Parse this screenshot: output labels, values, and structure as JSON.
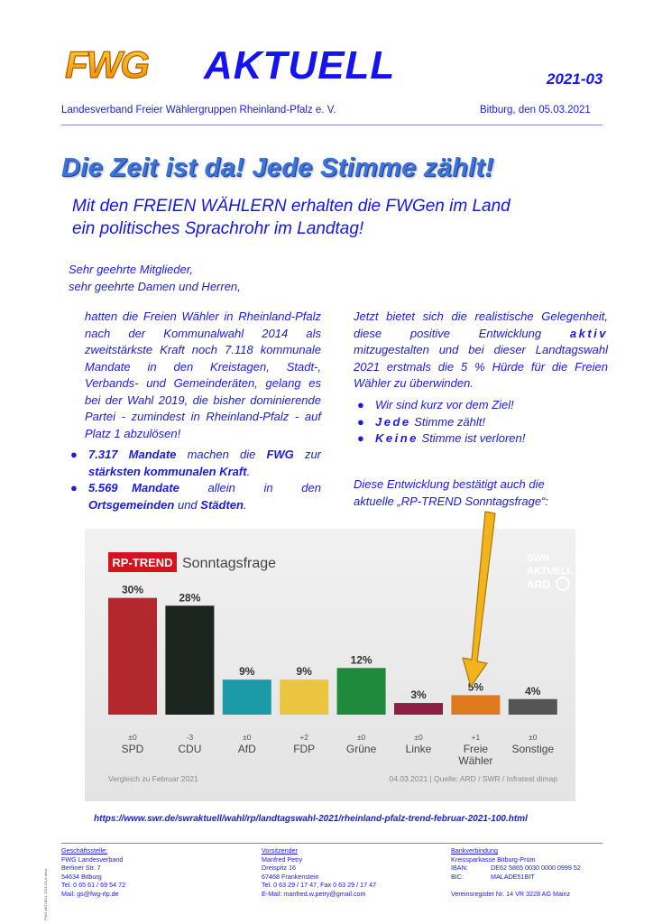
{
  "header": {
    "logo_text": "FWG",
    "brand": "AKTUELL",
    "issue": "2021-03",
    "organization": "Landesverband Freier Wählergruppen Rheinland-Pfalz e. V.",
    "dateline": "Bitburg, den 05.03.2021"
  },
  "headline": "Die Zeit ist da! Jede Stimme zählt!",
  "subheadline": {
    "line1": "Mit den FREIEN WÄHLERN erhalten die FWGen im Land",
    "line2": "ein politisches Sprachrohr im Landtag!"
  },
  "salutation": {
    "line1": "Sehr geehrte Mitglieder,",
    "line2": "sehr geehrte Damen und Herren,"
  },
  "left_column": {
    "paragraph": "hatten die Freien Wähler in Rheinland-Pfalz nach der Kommunalwahl 2014 als zweitstärkste Kraft noch 7.118 kommunale Mandate in den Kreistagen, Stadt-, Verbands- und Gemeinderäten, gelang es bei der Wahl 2019, die bisher dominierende Partei - zumindest in Rheinland-Pfalz - auf Platz 1 abzulösen!",
    "bullet1": {
      "num": "7.317 Mandate",
      "mid": " machen die ",
      "org": "FWG",
      "mid2": " zur ",
      "end": "stärksten kommunalen Kraft",
      "tail": "."
    },
    "bullet2": {
      "num": "5.569 Mandate",
      "mid": " allein in den ",
      "place1": "Ortsgemeinden",
      "and": " und ",
      "place2": "Städten",
      "tail": "."
    }
  },
  "right_column": {
    "p_start": "Jetzt bietet sich die realistische Gelegenheit, diese positive Entwicklung ",
    "p_emph": "aktiv",
    "p_end": " mitzugestalten und bei dieser Landtagswahl 2021 erstmals die 5 % Hürde für die Freien Wähler zu überwinden.",
    "bullet1": "Wir sind kurz vor dem Ziel!",
    "bullet2_emph": "Jede",
    "bullet2_rest": " Stimme zählt!",
    "bullet3_emph": "Keine",
    "bullet3_rest": " Stimme ist verloren!",
    "note_line1": "Diese Entwicklung bestätigt auch die",
    "note_line2": "aktuelle „RP-TREND Sonntagsfrage“:"
  },
  "chart_data": {
    "type": "bar",
    "badge": "RP-TREND",
    "title": "Sonntagsfrage",
    "broadcaster_top": "SWR",
    "broadcaster_mid": "AKTUELL",
    "broadcaster_bottom": "ARD",
    "categories": [
      "SPD",
      "CDU",
      "AfD",
      "FDP",
      "Grüne",
      "Linke",
      "Freie Wähler",
      "Sonstige"
    ],
    "category_lines": [
      [
        "SPD"
      ],
      [
        "CDU"
      ],
      [
        "AfD"
      ],
      [
        "FDP"
      ],
      [
        "Grüne"
      ],
      [
        "Linke"
      ],
      [
        "Freie",
        "Wähler"
      ],
      [
        "Sonstige"
      ]
    ],
    "values": [
      30,
      28,
      9,
      9,
      12,
      3,
      5,
      4
    ],
    "value_labels": [
      "30%",
      "28%",
      "9%",
      "9%",
      "12%",
      "3%",
      "5%",
      "4%"
    ],
    "changes": [
      "±0",
      "-3",
      "±0",
      "+2",
      "±0",
      "±0",
      "+1",
      "±0"
    ],
    "colors": [
      "#b3282c",
      "#1c2420",
      "#1b9aa8",
      "#ebc53f",
      "#1f8a3b",
      "#8c1f46",
      "#e07a1f",
      "#555555"
    ],
    "ylim": [
      0,
      32
    ],
    "footer_left": "Vergleich zu Februar 2021",
    "footer_right": "04.03.2021 | Quelle: ARD / SWR / Infratest dimap"
  },
  "source_url": "https://www.swr.de/swraktuell/wahl/rp/landtagswahl-2021/rheinland-pfalz-trend-februar-2021-100.html",
  "footer": {
    "office": {
      "heading": "Geschäftsstelle:",
      "lines": [
        "FWG Landesverband",
        "Berliner Str. 7",
        "54634 Bitburg",
        "Tel. 0 65 61 / 69 54 72",
        "Mail: gs@fwg-rlp.de"
      ]
    },
    "chair": {
      "heading": "Vorsitzender",
      "lines": [
        "Manfred Petry",
        "Dreispitz 16",
        "67468 Frankenstein",
        "Tel. 0 63 29 / 17 47,   Fax 0 63 29 / 17 47",
        "E-Mail: manfred.w.petry@gmail.com"
      ]
    },
    "bank": {
      "heading": "Bankverbindung",
      "line1": "Kreissparkasse Bitburg-Prüm",
      "iban_label": "IBAN:",
      "iban": "DE62 5865 0030 0000 0999 52",
      "bic_label": "BIC:",
      "bic": "MALADE51BIT",
      "register": "Vereinsregister Nr. 14 VR 3228 AG Mainz"
    }
  },
  "side_code": "FWG AKTUELL 2021-03-A.docx"
}
